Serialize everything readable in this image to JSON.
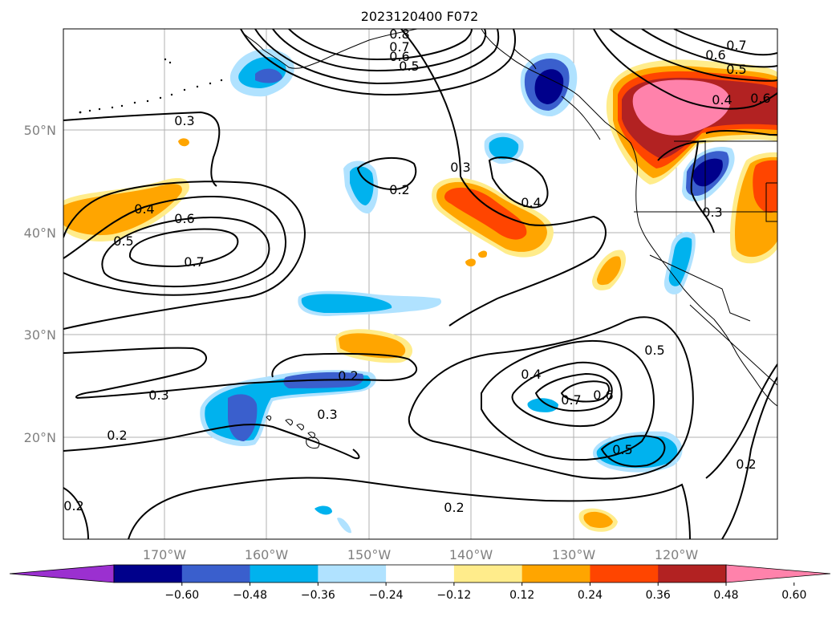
{
  "title": "2023120400 F072",
  "lat_labels": [
    "50°N",
    "40°N",
    "30°N",
    "20°N"
  ],
  "lon_labels": [
    "170°W",
    "160°W",
    "150°W",
    "140°W",
    "130°W",
    "120°W"
  ],
  "colorbar": {
    "ticks": [
      "−0.60",
      "−0.48",
      "−0.36",
      "−0.24",
      "−0.12",
      "0.12",
      "0.24",
      "0.36",
      "0.48",
      "0.60"
    ],
    "colors": [
      "#9b30d0",
      "#00008b",
      "#3a5fcd",
      "#00b2ee",
      "#b0e2ff",
      "#ffffff",
      "#ffec8b",
      "#ffa500",
      "#ff4500",
      "#b22222",
      "#ff82ab"
    ]
  },
  "contour_labels": [
    "0.8",
    "0.7",
    "0.6",
    "0.5",
    "0.7",
    "0.6",
    "0.5",
    "0.4",
    "0.6",
    "0.3",
    "0.4",
    "0.6",
    "0.7",
    "0.5",
    "0.3",
    "0.2",
    "0.4",
    "0.3",
    "0.2",
    "0.3",
    "0.2",
    "0.3",
    "0.4",
    "0.7",
    "0.6",
    "0.5",
    "0.5",
    "0.2",
    "0.2",
    "0.2"
  ]
}
